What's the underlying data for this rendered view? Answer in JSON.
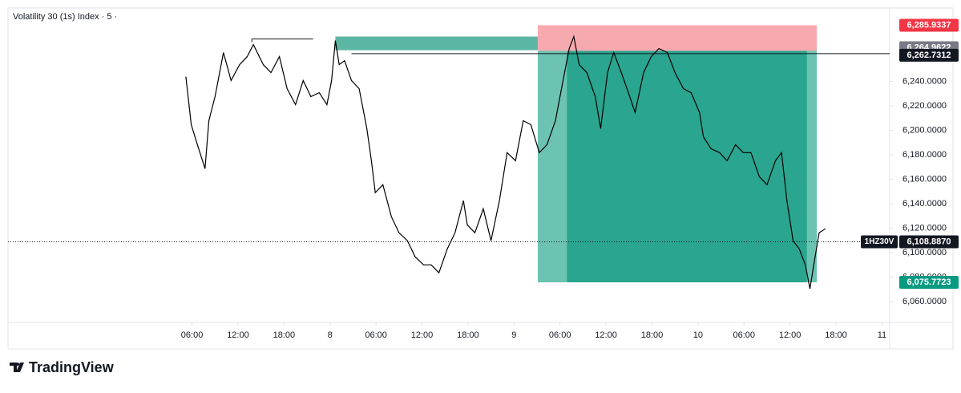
{
  "chart_data": {
    "type": "line",
    "title": "Volatility 30 (1s) Index · 5 ·",
    "symbol": "1HZ30V",
    "color": "#000000",
    "grid": false,
    "x": [
      5.2,
      5.9,
      6.7,
      7.7,
      8.2,
      9.0,
      10.1,
      11.1,
      12.2,
      13.2,
      14.0,
      15.3,
      16.3,
      17.4,
      18.4,
      19.5,
      20.5,
      21.5,
      22.6,
      23.6,
      24.2,
      24.7,
      25.2,
      25.9,
      26.8,
      27.8,
      28.8,
      29.4,
      29.9,
      30.9,
      32.0,
      33.0,
      34.1,
      35.1,
      36.2,
      37.2,
      38.2,
      39.3,
      40.3,
      41.4,
      41.9,
      42.9,
      44.0,
      45.0,
      46.1,
      47.1,
      48.2,
      49.2,
      50.2,
      51.3,
      52.3,
      53.4,
      54.4,
      55.2,
      55.8,
      56.5,
      57.5,
      58.6,
      59.3,
      60.2,
      61.0,
      62.0,
      63.1,
      63.8,
      64.9,
      65.9,
      66.9,
      68.0,
      69.0,
      70.1,
      71.1,
      72.2,
      72.7,
      73.7,
      74.8,
      75.8,
      76.9,
      77.9,
      78.9,
      80.0,
      81.0,
      82.1,
      82.9,
      83.6,
      84.4,
      85.2,
      86.0,
      86.6,
      87.1,
      87.8,
      88.6
    ],
    "values": [
      6243.9,
      6204.7,
      6188.3,
      6168.7,
      6207.9,
      6227.6,
      6263.6,
      6240.7,
      6253.7,
      6260.3,
      6270.1,
      6253.7,
      6247.2,
      6260.3,
      6234.1,
      6221.0,
      6240.7,
      6227.6,
      6230.8,
      6221.0,
      6240.7,
      6273.4,
      6253.7,
      6257.0,
      6240.7,
      6234.1,
      6201.4,
      6175.2,
      6149.1,
      6155.6,
      6129.4,
      6116.3,
      6109.8,
      6096.7,
      6090.1,
      6090.1,
      6083.6,
      6103.2,
      6116.3,
      6142.5,
      6122.8,
      6116.3,
      6135.9,
      6109.8,
      6142.5,
      6181.8,
      6175.2,
      6207.9,
      6204.7,
      6181.8,
      6188.3,
      6207.9,
      6240.7,
      6266.8,
      6276.7,
      6253.7,
      6247.2,
      6227.6,
      6201.4,
      6247.2,
      6263.6,
      6247.2,
      6227.6,
      6214.5,
      6247.2,
      6260.3,
      6266.8,
      6263.6,
      6247.2,
      6234.1,
      6230.8,
      6214.5,
      6194.8,
      6185.0,
      6181.8,
      6175.2,
      6188.3,
      6181.8,
      6181.8,
      6162.1,
      6155.6,
      6175.2,
      6181.8,
      6142.5,
      6109.8,
      6103.2,
      6090.1,
      6070.5,
      6090.1,
      6116.3,
      6119.6
    ],
    "xlim": [
      -18,
      97
    ],
    "ylim": [
      6043,
      6300
    ],
    "xticks": [
      {
        "value": 6,
        "label": "06:00"
      },
      {
        "value": 12,
        "label": "12:00"
      },
      {
        "value": 18,
        "label": "18:00"
      },
      {
        "value": 24,
        "label": "8"
      },
      {
        "value": 30,
        "label": "06:00"
      },
      {
        "value": 36,
        "label": "12:00"
      },
      {
        "value": 42,
        "label": "18:00"
      },
      {
        "value": 48,
        "label": "9"
      },
      {
        "value": 54,
        "label": "06:00"
      },
      {
        "value": 60,
        "label": "12:00"
      },
      {
        "value": 66,
        "label": "18:00"
      },
      {
        "value": 72,
        "label": "10"
      },
      {
        "value": 78,
        "label": "06:00"
      },
      {
        "value": 84,
        "label": "12:00"
      },
      {
        "value": 90,
        "label": "18:00"
      },
      {
        "value": 96,
        "label": "11"
      }
    ],
    "yticks": [
      {
        "value": 6060,
        "label": "6,060.0000"
      },
      {
        "value": 6080,
        "label": "6,080.0000"
      },
      {
        "value": 6100,
        "label": "6,100.0000"
      },
      {
        "value": 6120,
        "label": "6,120.0000"
      },
      {
        "value": 6140,
        "label": "6,140.0000"
      },
      {
        "value": 6160,
        "label": "6,160.0000"
      },
      {
        "value": 6180,
        "label": "6,180.0000"
      },
      {
        "value": 6200,
        "label": "6,200.0000"
      },
      {
        "value": 6220,
        "label": "6,220.0000"
      },
      {
        "value": 6240,
        "label": "6,240.0000"
      }
    ],
    "last_price": {
      "value": 6108.887,
      "label": "6,108.8870"
    },
    "position": {
      "x": [
        51.1,
        87.5
      ],
      "active_x": [
        54.9,
        86.2
      ],
      "stop": {
        "value": 6285.9337,
        "label": "6,285.9337"
      },
      "entry": {
        "value": 6264.9622,
        "label": "6,264.9622"
      },
      "target": {
        "value": 6075.7723,
        "label": "6,075.7723"
      },
      "stop_color": "#f7a9b0",
      "target_color": "#6cc3b1",
      "active_color": "#2aa58f"
    },
    "ray": {
      "x": 26.8,
      "value": 6262.7312,
      "label": "6,262.7312"
    },
    "zone": {
      "x": [
        24.7,
        51.1
      ],
      "y": [
        6265.5,
        6276.7
      ],
      "color": "#5bb7a3"
    },
    "segment": {
      "x": [
        13.8,
        21.8
      ],
      "value": 6274.7
    }
  },
  "footer": {
    "brand": "TradingView"
  }
}
